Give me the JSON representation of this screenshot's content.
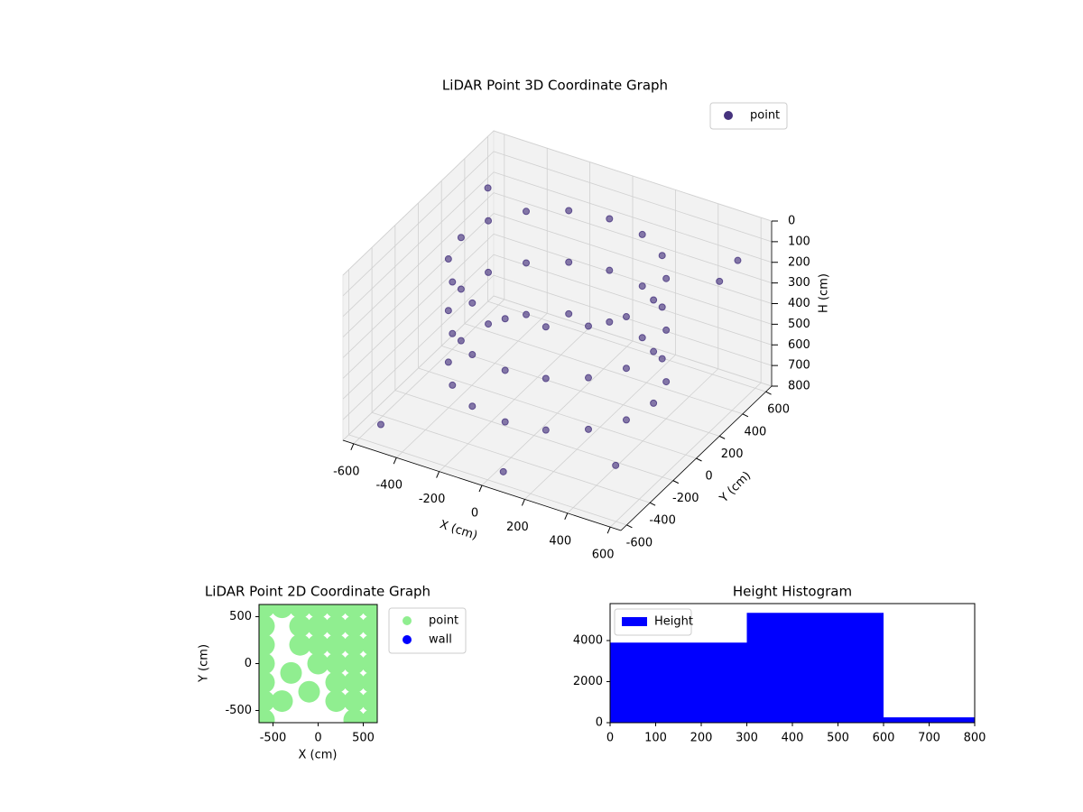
{
  "chart_data": [
    {
      "type": "scatter3d",
      "title": "LiDAR Point 3D Coordinate Graph",
      "xlabel": "X (cm)",
      "ylabel": "Y (cm)",
      "zlabel": "H (cm)",
      "xlim": [
        -650,
        650
      ],
      "ylim": [
        -650,
        650
      ],
      "zlim": [
        0,
        800
      ],
      "xticks": [
        -600,
        -400,
        -200,
        0,
        200,
        400,
        600
      ],
      "yticks": [
        -600,
        -400,
        -200,
        0,
        200,
        400,
        600
      ],
      "zticks": [
        0,
        100,
        200,
        300,
        400,
        500,
        600,
        700,
        800
      ],
      "legend": "upper right",
      "grid": true,
      "series": [
        {
          "name": "point",
          "color": "#46337e",
          "x": [
            450,
            416,
            318,
            172,
            0,
            -172,
            -318,
            -416,
            -450,
            -416,
            -318,
            -172,
            0,
            172,
            318,
            416,
            450,
            416,
            318,
            172,
            0,
            -172,
            -318,
            -416,
            -450,
            -416,
            -318,
            -172,
            0,
            172,
            318,
            416,
            450,
            416,
            318,
            172,
            0,
            -172,
            -318,
            -416,
            -450,
            -416,
            -318,
            -172,
            0,
            172,
            318,
            416,
            -650,
            620,
            600,
            -500,
            100,
            650
          ],
          "y": [
            0,
            172,
            318,
            416,
            450,
            416,
            318,
            172,
            0,
            -172,
            -318,
            -416,
            -450,
            -416,
            -318,
            -172,
            0,
            172,
            318,
            416,
            450,
            416,
            318,
            172,
            0,
            -172,
            -318,
            -416,
            -450,
            -416,
            -318,
            -172,
            0,
            172,
            318,
            416,
            450,
            416,
            318,
            172,
            0,
            -172,
            -318,
            -416,
            -450,
            -416,
            -318,
            -172,
            600,
            -640,
            450,
            -600,
            -650,
            200
          ],
          "z": [
            100,
            100,
            100,
            100,
            100,
            100,
            100,
            100,
            100,
            100,
            100,
            100,
            100,
            100,
            100,
            100,
            350,
            350,
            350,
            350,
            350,
            350,
            350,
            350,
            350,
            350,
            350,
            350,
            350,
            350,
            350,
            350,
            600,
            600,
            600,
            600,
            600,
            600,
            600,
            600,
            600,
            600,
            600,
            600,
            600,
            600,
            600,
            600,
            250,
            500,
            100,
            700,
            700,
            50
          ]
        }
      ]
    },
    {
      "type": "scatter",
      "title": "LiDAR Point 2D Coordinate Graph",
      "xlabel": "X (cm)",
      "ylabel": "Y (cm)",
      "xlim": [
        -655,
        655
      ],
      "ylim": [
        -630,
        630
      ],
      "xticks": [
        -500,
        0,
        500
      ],
      "yticks": [
        -500,
        0,
        500
      ],
      "legend": "outside right",
      "series": [
        {
          "name": "point",
          "color": "#90ee90",
          "x": [
            -600,
            -600,
            -600,
            -600,
            -600,
            -600,
            -600,
            -400,
            -200,
            -200,
            -200,
            0,
            0,
            0,
            0,
            200,
            200,
            200,
            200,
            200,
            200,
            400,
            400,
            400,
            400,
            400,
            400,
            400,
            600,
            600,
            600,
            600,
            600,
            600,
            600,
            -300,
            -400,
            -100
          ],
          "y": [
            -600,
            -400,
            -200,
            0,
            200,
            400,
            600,
            600,
            200,
            400,
            600,
            0,
            200,
            400,
            600,
            -400,
            -200,
            0,
            200,
            400,
            600,
            -600,
            -400,
            -200,
            0,
            200,
            400,
            600,
            -600,
            -400,
            -200,
            0,
            200,
            400,
            600,
            -100,
            -400,
            -300
          ]
        },
        {
          "name": "wall",
          "color": "#0000ff",
          "x": [],
          "y": []
        }
      ]
    },
    {
      "type": "histogram",
      "title": "Height Histogram",
      "name": "Height",
      "color": "#0000ff",
      "bins": [
        0,
        300,
        600,
        800
      ],
      "values": [
        3900,
        5350,
        260
      ],
      "xlim": [
        0,
        800
      ],
      "ylim": [
        0,
        5800
      ],
      "xticks": [
        0,
        100,
        200,
        300,
        400,
        500,
        600,
        700,
        800
      ],
      "yticks": [
        0,
        2000,
        4000
      ],
      "legend": "upper left"
    }
  ]
}
